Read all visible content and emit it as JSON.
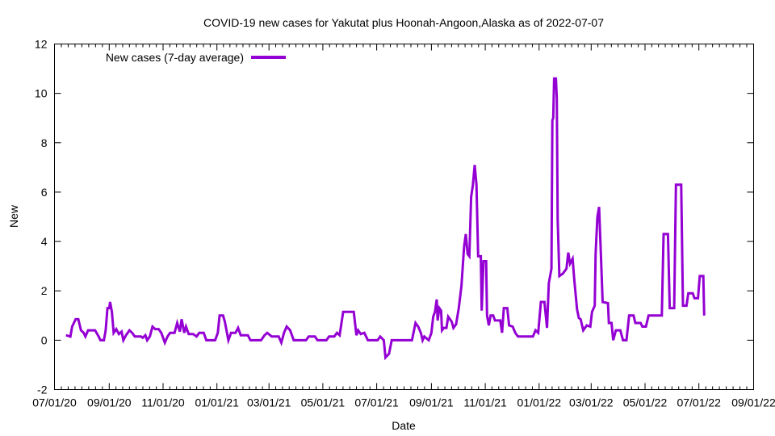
{
  "chart_data": {
    "type": "line",
    "title": "COVID-19 new cases for Yakutat plus Hoonah-Angoon,Alaska as of 2022-07-07",
    "xlabel": "Date",
    "ylabel": "New",
    "ylim": [
      -2,
      12
    ],
    "yticks": [
      "-2",
      "0",
      "2",
      "4",
      "6",
      "8",
      "10",
      "12"
    ],
    "xlim": [
      "2020-07-01",
      "2022-09-01"
    ],
    "xticks": [
      {
        "date": "2020-07-01",
        "label": "07/01/20"
      },
      {
        "date": "2020-09-01",
        "label": "09/01/20"
      },
      {
        "date": "2020-11-01",
        "label": "11/01/20"
      },
      {
        "date": "2021-01-01",
        "label": "01/01/21"
      },
      {
        "date": "2021-03-01",
        "label": "03/01/21"
      },
      {
        "date": "2021-05-01",
        "label": "05/01/21"
      },
      {
        "date": "2021-07-01",
        "label": "07/01/21"
      },
      {
        "date": "2021-09-01",
        "label": "09/01/21"
      },
      {
        "date": "2021-11-01",
        "label": "11/01/21"
      },
      {
        "date": "2022-01-01",
        "label": "01/01/22"
      },
      {
        "date": "2022-03-01",
        "label": "03/01/22"
      },
      {
        "date": "2022-05-01",
        "label": "05/01/22"
      },
      {
        "date": "2022-07-01",
        "label": "07/01/22"
      },
      {
        "date": "2022-09-01",
        "label": "09/01/22"
      }
    ],
    "legend": "top-left",
    "series": [
      {
        "name": "New cases (7-day average)",
        "color": "#9400d3",
        "points": [
          [
            "2020-07-14",
            0.2
          ],
          [
            "2020-07-19",
            0.15
          ],
          [
            "2020-07-21",
            0.55
          ],
          [
            "2020-07-25",
            0.85
          ],
          [
            "2020-07-28",
            0.85
          ],
          [
            "2020-07-31",
            0.4
          ],
          [
            "2020-08-03",
            0.3
          ],
          [
            "2020-08-05",
            0.15
          ],
          [
            "2020-08-08",
            0.4
          ],
          [
            "2020-08-16",
            0.4
          ],
          [
            "2020-08-20",
            0.15
          ],
          [
            "2020-08-22",
            0.0
          ],
          [
            "2020-08-26",
            0.0
          ],
          [
            "2020-08-28",
            0.4
          ],
          [
            "2020-08-30",
            1.3
          ],
          [
            "2020-09-01",
            1.3
          ],
          [
            "2020-09-02",
            1.55
          ],
          [
            "2020-09-04",
            1.15
          ],
          [
            "2020-09-06",
            0.3
          ],
          [
            "2020-09-09",
            0.45
          ],
          [
            "2020-09-12",
            0.25
          ],
          [
            "2020-09-15",
            0.35
          ],
          [
            "2020-09-17",
            0.0
          ],
          [
            "2020-09-20",
            0.2
          ],
          [
            "2020-09-24",
            0.4
          ],
          [
            "2020-09-27",
            0.3
          ],
          [
            "2020-09-30",
            0.15
          ],
          [
            "2020-10-04",
            0.15
          ],
          [
            "2020-10-07",
            0.15
          ],
          [
            "2020-10-09",
            0.1
          ],
          [
            "2020-10-12",
            0.2
          ],
          [
            "2020-10-14",
            0.0
          ],
          [
            "2020-10-17",
            0.15
          ],
          [
            "2020-10-20",
            0.55
          ],
          [
            "2020-10-23",
            0.45
          ],
          [
            "2020-10-27",
            0.45
          ],
          [
            "2020-10-30",
            0.3
          ],
          [
            "2020-11-03",
            -0.1
          ],
          [
            "2020-11-06",
            0.15
          ],
          [
            "2020-11-09",
            0.3
          ],
          [
            "2020-11-14",
            0.3
          ],
          [
            "2020-11-17",
            0.7
          ],
          [
            "2020-11-20",
            0.35
          ],
          [
            "2020-11-22",
            0.85
          ],
          [
            "2020-11-25",
            0.3
          ],
          [
            "2020-11-27",
            0.55
          ],
          [
            "2020-11-30",
            0.25
          ],
          [
            "2020-12-05",
            0.25
          ],
          [
            "2020-12-09",
            0.15
          ],
          [
            "2020-12-12",
            0.3
          ],
          [
            "2020-12-17",
            0.3
          ],
          [
            "2020-12-20",
            0.0
          ],
          [
            "2020-12-30",
            0.0
          ],
          [
            "2021-01-02",
            0.3
          ],
          [
            "2021-01-04",
            1.0
          ],
          [
            "2021-01-08",
            1.0
          ],
          [
            "2021-01-10",
            0.75
          ],
          [
            "2021-01-14",
            0.0
          ],
          [
            "2021-01-17",
            0.3
          ],
          [
            "2021-01-22",
            0.3
          ],
          [
            "2021-01-25",
            0.5
          ],
          [
            "2021-01-28",
            0.2
          ],
          [
            "2021-02-05",
            0.2
          ],
          [
            "2021-02-08",
            0.0
          ],
          [
            "2021-02-20",
            0.0
          ],
          [
            "2021-02-24",
            0.2
          ],
          [
            "2021-02-27",
            0.3
          ],
          [
            "2021-03-04",
            0.15
          ],
          [
            "2021-03-12",
            0.15
          ],
          [
            "2021-03-15",
            -0.1
          ],
          [
            "2021-03-18",
            0.3
          ],
          [
            "2021-03-21",
            0.55
          ],
          [
            "2021-03-25",
            0.4
          ],
          [
            "2021-03-29",
            0.0
          ],
          [
            "2021-04-12",
            0.0
          ],
          [
            "2021-04-15",
            0.15
          ],
          [
            "2021-04-22",
            0.15
          ],
          [
            "2021-04-25",
            0.0
          ],
          [
            "2021-05-05",
            0.0
          ],
          [
            "2021-05-08",
            0.15
          ],
          [
            "2021-05-14",
            0.15
          ],
          [
            "2021-05-17",
            0.3
          ],
          [
            "2021-05-20",
            0.2
          ],
          [
            "2021-05-24",
            1.15
          ],
          [
            "2021-05-30",
            1.15
          ],
          [
            "2021-06-05",
            1.15
          ],
          [
            "2021-06-08",
            0.2
          ],
          [
            "2021-06-10",
            0.4
          ],
          [
            "2021-06-13",
            0.25
          ],
          [
            "2021-06-17",
            0.3
          ],
          [
            "2021-06-21",
            0.0
          ],
          [
            "2021-06-24",
            0.0
          ],
          [
            "2021-07-02",
            0.0
          ],
          [
            "2021-07-05",
            0.15
          ],
          [
            "2021-07-09",
            0.0
          ],
          [
            "2021-07-11",
            -0.7
          ],
          [
            "2021-07-15",
            -0.55
          ],
          [
            "2021-07-18",
            0.0
          ],
          [
            "2021-08-10",
            0.0
          ],
          [
            "2021-08-14",
            0.7
          ],
          [
            "2021-08-17",
            0.55
          ],
          [
            "2021-08-20",
            0.3
          ],
          [
            "2021-08-22",
            0.0
          ],
          [
            "2021-08-24",
            0.15
          ],
          [
            "2021-08-29",
            0.0
          ],
          [
            "2021-09-01",
            0.3
          ],
          [
            "2021-09-03",
            0.95
          ],
          [
            "2021-09-05",
            1.15
          ],
          [
            "2021-09-07",
            1.65
          ],
          [
            "2021-09-08",
            0.8
          ],
          [
            "2021-09-10",
            1.3
          ],
          [
            "2021-09-12",
            1.2
          ],
          [
            "2021-09-13",
            0.4
          ],
          [
            "2021-09-15",
            0.5
          ],
          [
            "2021-09-18",
            0.5
          ],
          [
            "2021-09-20",
            0.95
          ],
          [
            "2021-09-24",
            0.75
          ],
          [
            "2021-09-26",
            0.5
          ],
          [
            "2021-09-29",
            0.65
          ],
          [
            "2021-10-02",
            1.3
          ],
          [
            "2021-10-05",
            2.2
          ],
          [
            "2021-10-08",
            3.8
          ],
          [
            "2021-10-10",
            4.3
          ],
          [
            "2021-10-12",
            3.5
          ],
          [
            "2021-10-14",
            3.4
          ],
          [
            "2021-10-16",
            5.8
          ],
          [
            "2021-10-18",
            6.3
          ],
          [
            "2021-10-20",
            7.1
          ],
          [
            "2021-10-22",
            6.3
          ],
          [
            "2021-10-24",
            3.4
          ],
          [
            "2021-10-27",
            3.4
          ],
          [
            "2021-10-28",
            1.2
          ],
          [
            "2021-10-30",
            3.2
          ],
          [
            "2021-11-02",
            3.2
          ],
          [
            "2021-11-03",
            1.0
          ],
          [
            "2021-11-05",
            0.6
          ],
          [
            "2021-11-07",
            1.0
          ],
          [
            "2021-11-10",
            1.0
          ],
          [
            "2021-11-12",
            0.8
          ],
          [
            "2021-11-18",
            0.8
          ],
          [
            "2021-11-20",
            0.3
          ],
          [
            "2021-11-22",
            1.3
          ],
          [
            "2021-11-26",
            1.3
          ],
          [
            "2021-11-28",
            0.6
          ],
          [
            "2021-12-02",
            0.55
          ],
          [
            "2021-12-05",
            0.3
          ],
          [
            "2021-12-08",
            0.15
          ],
          [
            "2021-12-25",
            0.15
          ],
          [
            "2021-12-28",
            0.4
          ],
          [
            "2021-12-31",
            0.3
          ],
          [
            "2022-01-03",
            1.55
          ],
          [
            "2022-01-07",
            1.55
          ],
          [
            "2022-01-10",
            0.5
          ],
          [
            "2022-01-12",
            2.3
          ],
          [
            "2022-01-15",
            2.9
          ],
          [
            "2022-01-16",
            8.9
          ],
          [
            "2022-01-17",
            9.0
          ],
          [
            "2022-01-18",
            10.6
          ],
          [
            "2022-01-20",
            10.6
          ],
          [
            "2022-01-21",
            9.8
          ],
          [
            "2022-01-22",
            4.9
          ],
          [
            "2022-01-24",
            2.6
          ],
          [
            "2022-01-28",
            2.7
          ],
          [
            "2022-02-01",
            2.9
          ],
          [
            "2022-02-03",
            3.55
          ],
          [
            "2022-02-05",
            3.1
          ],
          [
            "2022-02-08",
            3.3
          ],
          [
            "2022-02-10",
            2.4
          ],
          [
            "2022-02-13",
            1.25
          ],
          [
            "2022-02-15",
            0.9
          ],
          [
            "2022-02-17",
            0.85
          ],
          [
            "2022-02-20",
            0.4
          ],
          [
            "2022-02-24",
            0.6
          ],
          [
            "2022-02-28",
            0.55
          ],
          [
            "2022-03-02",
            1.15
          ],
          [
            "2022-03-05",
            1.4
          ],
          [
            "2022-03-06",
            3.5
          ],
          [
            "2022-03-08",
            5.0
          ],
          [
            "2022-03-10",
            5.4
          ],
          [
            "2022-03-12",
            3.5
          ],
          [
            "2022-03-14",
            1.55
          ],
          [
            "2022-03-20",
            1.5
          ],
          [
            "2022-03-21",
            0.7
          ],
          [
            "2022-03-24",
            0.7
          ],
          [
            "2022-03-26",
            0.0
          ],
          [
            "2022-03-29",
            0.4
          ],
          [
            "2022-04-03",
            0.4
          ],
          [
            "2022-04-06",
            0.0
          ],
          [
            "2022-04-10",
            0.0
          ],
          [
            "2022-04-13",
            1.0
          ],
          [
            "2022-04-18",
            1.0
          ],
          [
            "2022-04-20",
            0.7
          ],
          [
            "2022-04-26",
            0.7
          ],
          [
            "2022-04-28",
            0.55
          ],
          [
            "2022-05-02",
            0.55
          ],
          [
            "2022-05-05",
            1.0
          ],
          [
            "2022-05-20",
            1.0
          ],
          [
            "2022-05-22",
            4.3
          ],
          [
            "2022-05-27",
            4.3
          ],
          [
            "2022-05-29",
            1.3
          ],
          [
            "2022-06-03",
            1.3
          ],
          [
            "2022-06-05",
            6.3
          ],
          [
            "2022-06-11",
            6.3
          ],
          [
            "2022-06-13",
            1.4
          ],
          [
            "2022-06-17",
            1.4
          ],
          [
            "2022-06-19",
            1.9
          ],
          [
            "2022-06-24",
            1.9
          ],
          [
            "2022-06-26",
            1.7
          ],
          [
            "2022-06-30",
            1.7
          ],
          [
            "2022-07-02",
            2.6
          ],
          [
            "2022-07-06",
            2.6
          ],
          [
            "2022-07-07",
            1.0
          ]
        ]
      }
    ]
  }
}
